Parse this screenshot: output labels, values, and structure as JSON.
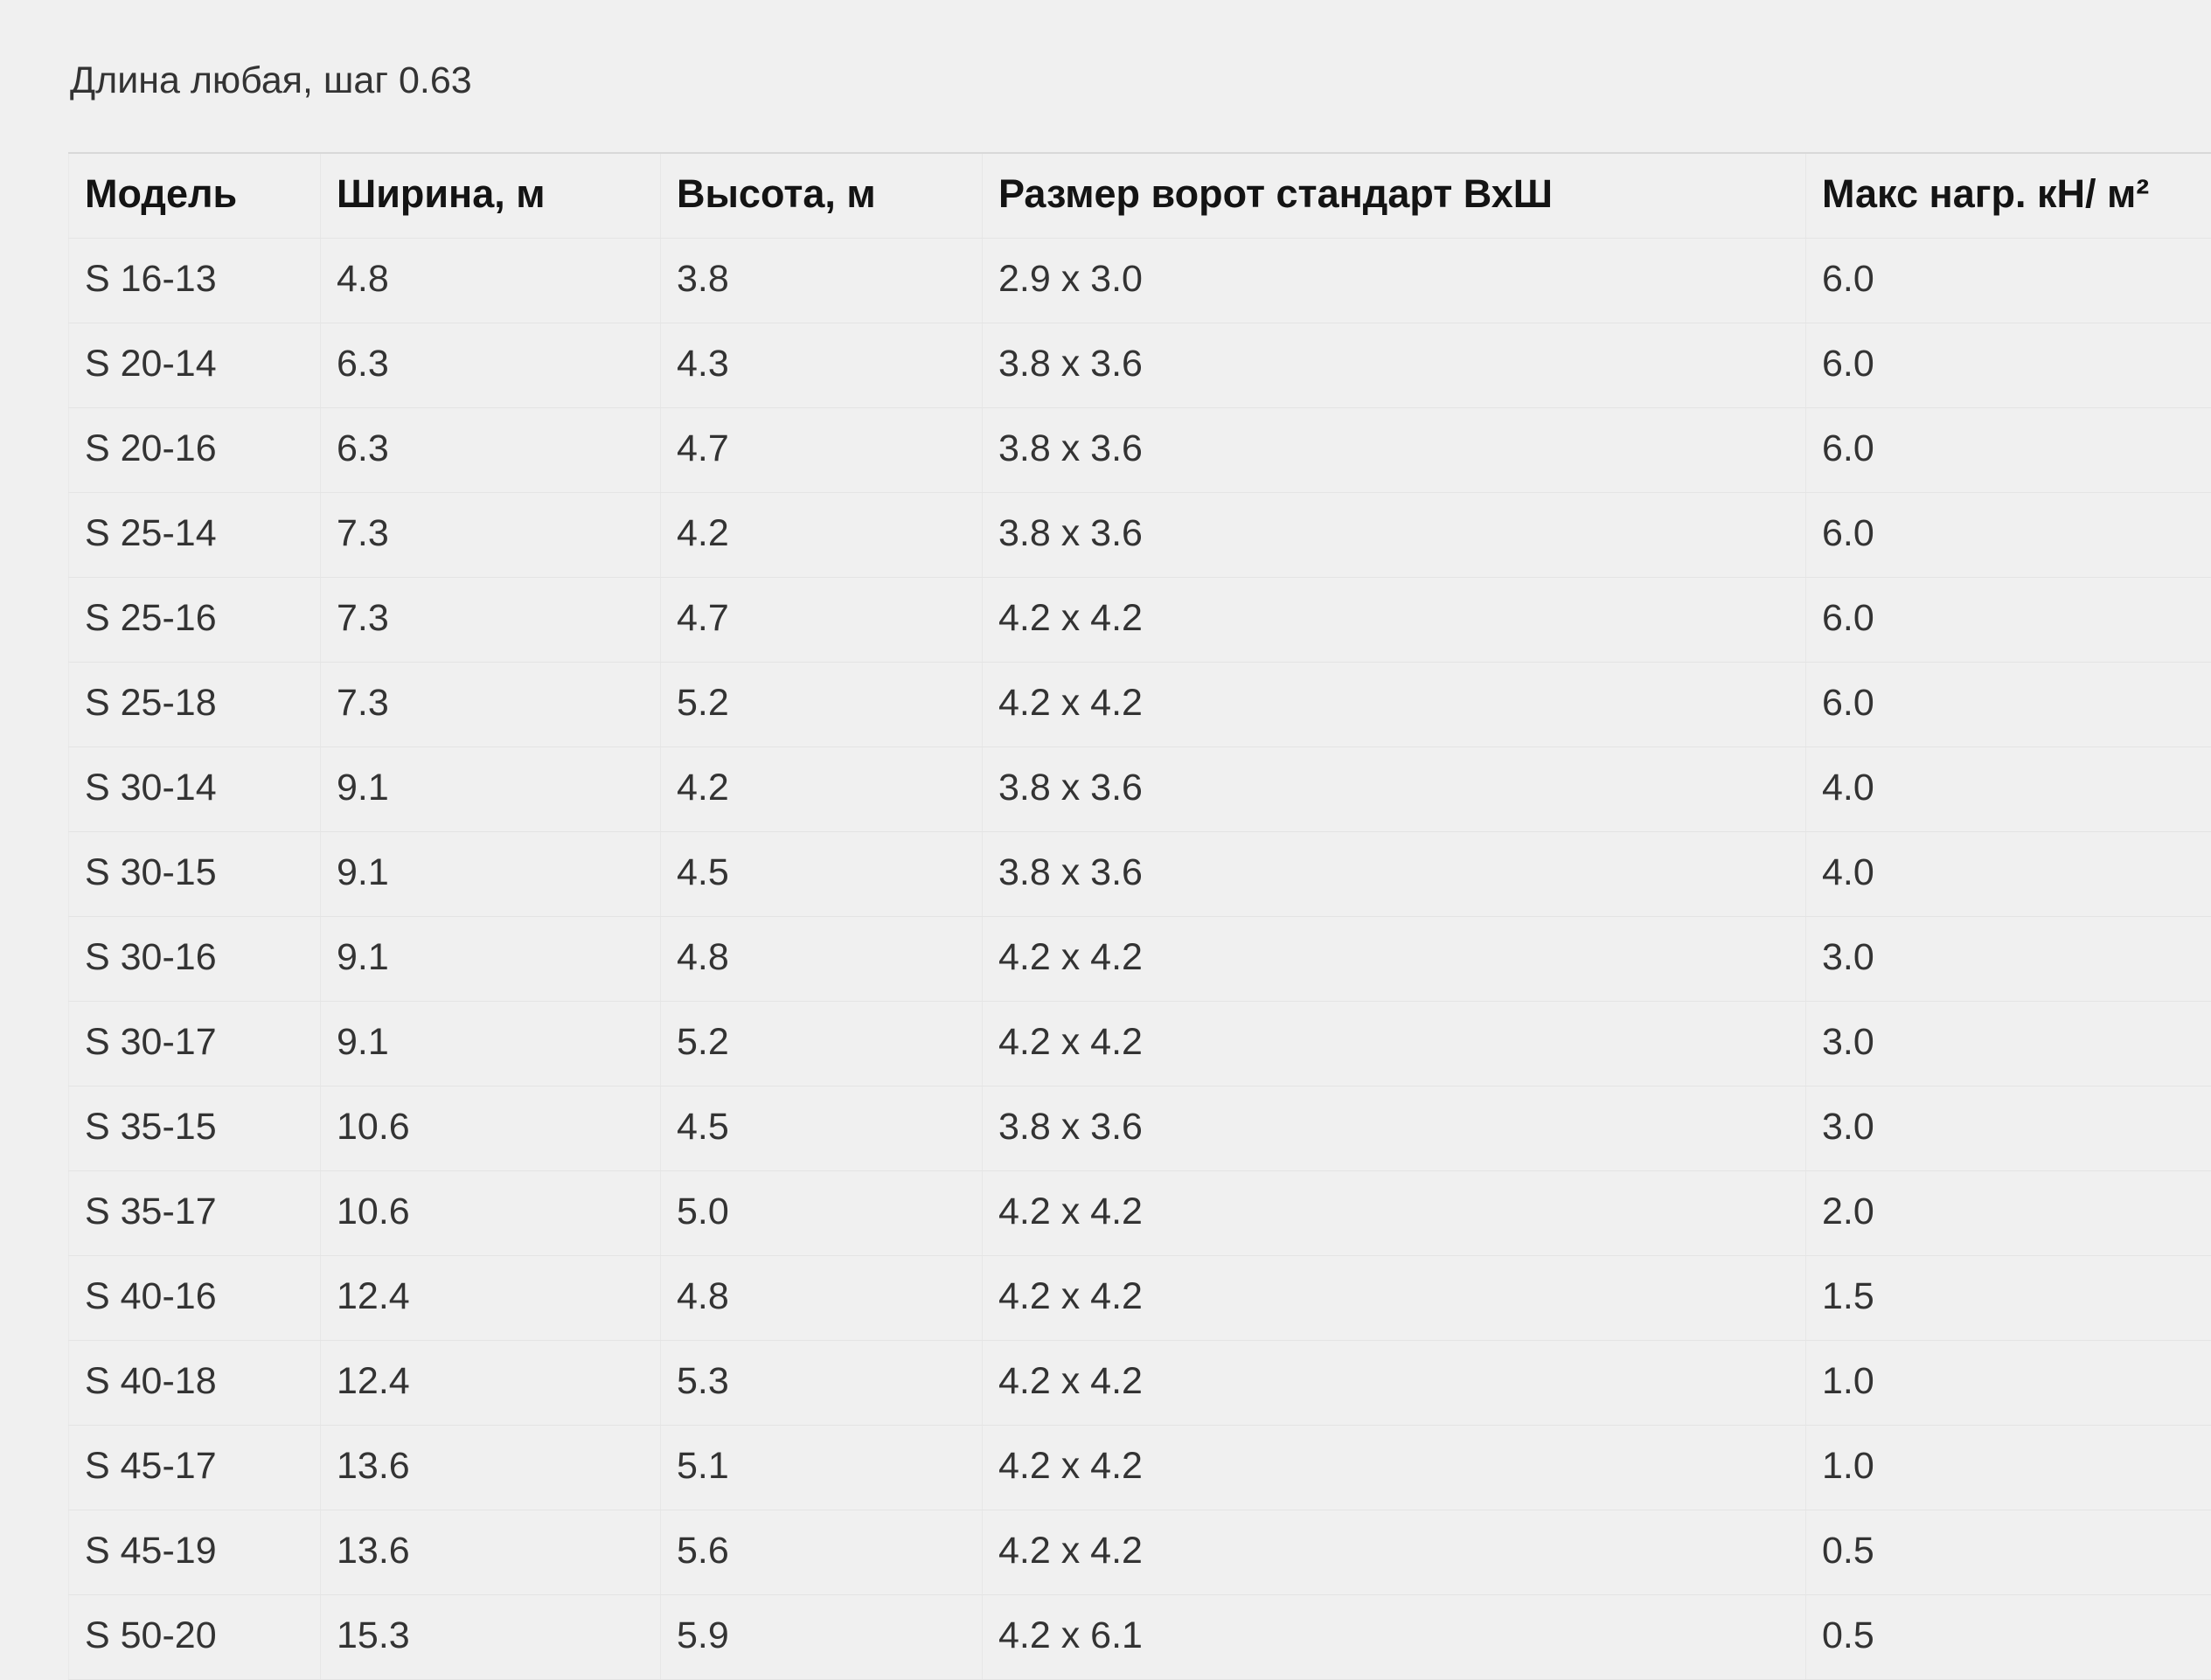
{
  "page": {
    "caption": "Длина любая, шаг 0.63"
  },
  "colors": {
    "background": "#f0f0f0",
    "cell_border": "#e4e4e4",
    "table_top_border": "#d8d8d8",
    "body_text": "#333333",
    "header_text": "#141414"
  },
  "table": {
    "columns": [
      "Модель",
      "Ширина, м",
      "Высота, м",
      "Размер ворот стандарт ВхШ",
      "Макс нагр. кН/ м²"
    ],
    "rows": [
      [
        "S 16-13",
        "4.8",
        "3.8",
        "2.9 x 3.0",
        "6.0"
      ],
      [
        "S 20-14",
        "6.3",
        "4.3",
        "3.8 x 3.6",
        "6.0"
      ],
      [
        "S 20-16",
        "6.3",
        "4.7",
        "3.8 x 3.6",
        "6.0"
      ],
      [
        "S 25-14",
        "7.3",
        "4.2",
        "3.8 x 3.6",
        "6.0"
      ],
      [
        "S 25-16",
        "7.3",
        "4.7",
        "4.2 x 4.2",
        "6.0"
      ],
      [
        "S 25-18",
        "7.3",
        "5.2",
        "4.2 x 4.2",
        "6.0"
      ],
      [
        "S 30-14",
        "9.1",
        "4.2",
        "3.8 x 3.6",
        "4.0"
      ],
      [
        "S 30-15",
        "9.1",
        "4.5",
        "3.8 x 3.6",
        "4.0"
      ],
      [
        "S 30-16",
        "9.1",
        "4.8",
        "4.2 x 4.2",
        "3.0"
      ],
      [
        "S 30-17",
        "9.1",
        "5.2",
        "4.2 x 4.2",
        "3.0"
      ],
      [
        "S 35-15",
        "10.6",
        "4.5",
        "3.8 x 3.6",
        "3.0"
      ],
      [
        "S 35-17",
        "10.6",
        "5.0",
        "4.2 x 4.2",
        "2.0"
      ],
      [
        "S 40-16",
        "12.4",
        "4.8",
        "4.2 x 4.2",
        "1.5"
      ],
      [
        "S 40-18",
        "12.4",
        "5.3",
        "4.2 x 4.2",
        "1.0"
      ],
      [
        "S 45-17",
        "13.6",
        "5.1",
        "4.2 x 4.2",
        "1.0"
      ],
      [
        "S 45-19",
        "13.6",
        "5.6",
        "4.2 x 4.2",
        "0.5"
      ],
      [
        "S 50-20",
        "15.3",
        "5.9",
        "4.2 x 6.1",
        "0.5"
      ]
    ]
  }
}
